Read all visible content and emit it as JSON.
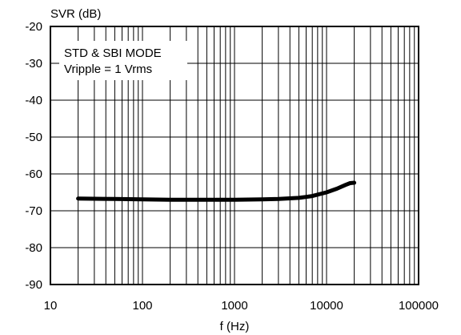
{
  "chart_data": {
    "type": "line",
    "ylabel": "SVR (dB)",
    "xlabel": "f (Hz)",
    "x_scale": "log",
    "xlim": [
      10,
      100000
    ],
    "ylim": [
      -90,
      -20
    ],
    "grid": true,
    "x_ticks": [
      "10",
      "100",
      "1000",
      "10000",
      "100000"
    ],
    "y_ticks": [
      "-20",
      "-30",
      "-40",
      "-50",
      "-60",
      "-70",
      "-80",
      "-90"
    ],
    "annotation": [
      "STD & SBI MODE",
      "Vripple = 1 Vrms"
    ],
    "series": [
      {
        "x": [
          20,
          50,
          100,
          200,
          500,
          1000,
          2000,
          3000,
          5000,
          7000,
          10000,
          13000,
          16000,
          18000,
          20000
        ],
        "y": [
          -66.7,
          -66.8,
          -66.9,
          -67,
          -67,
          -67,
          -66.9,
          -66.8,
          -66.5,
          -66,
          -65,
          -64,
          -63,
          -62.5,
          -62.4
        ]
      }
    ]
  }
}
